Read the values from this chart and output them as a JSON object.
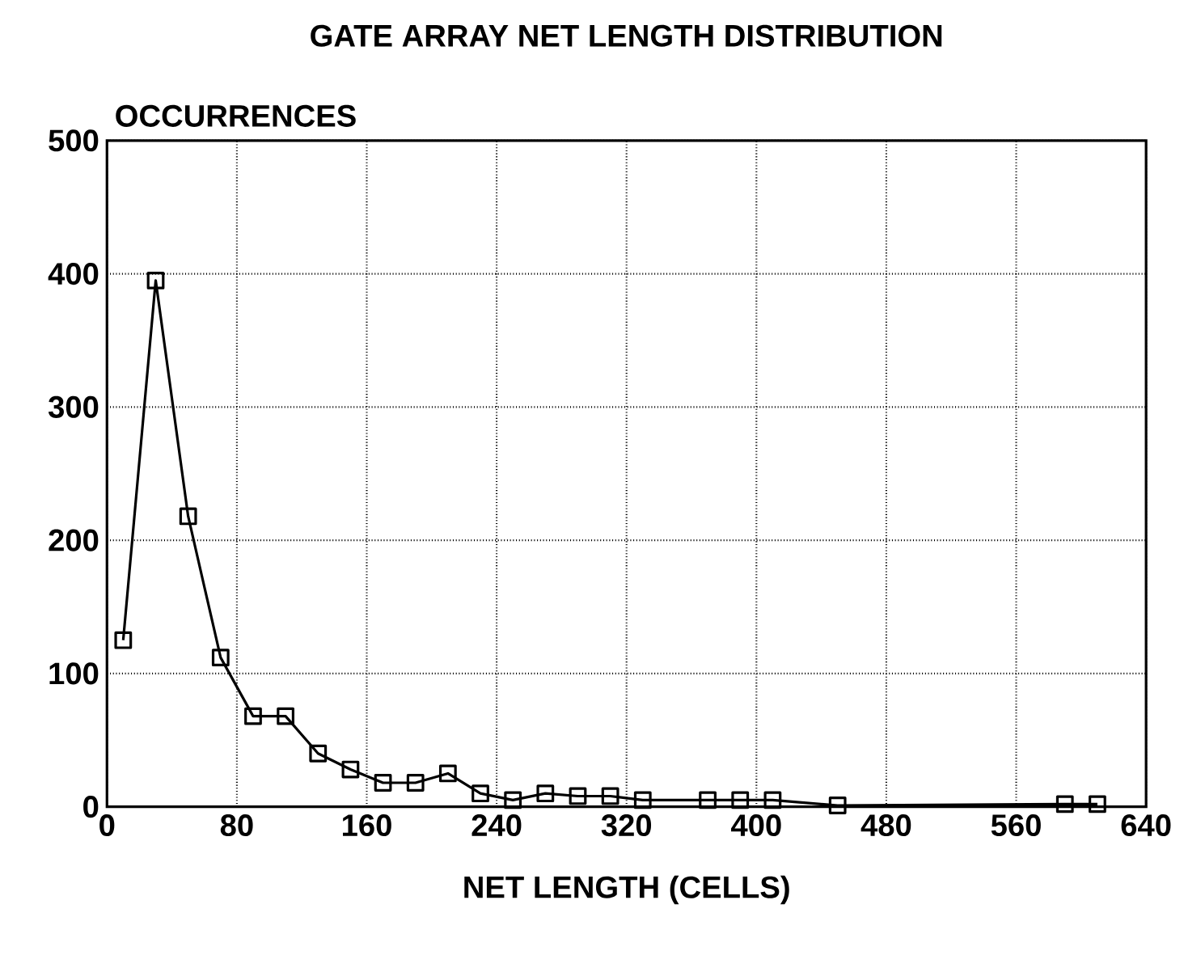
{
  "chart_data": {
    "type": "line",
    "title": "GATE ARRAY NET LENGTH DISTRIBUTION",
    "ylabel": "OCCURRENCES",
    "xlabel": "NET LENGTH (CELLS)",
    "x": [
      10,
      30,
      50,
      70,
      90,
      110,
      130,
      150,
      170,
      190,
      210,
      230,
      250,
      270,
      290,
      310,
      330,
      370,
      390,
      410,
      450,
      590,
      610
    ],
    "values": [
      125,
      395,
      218,
      112,
      68,
      68,
      40,
      28,
      18,
      18,
      25,
      10,
      5,
      10,
      8,
      8,
      5,
      5,
      5,
      5,
      1,
      2,
      2
    ],
    "color": "#000000",
    "marker": "square",
    "grid": true,
    "xlim": [
      0,
      640
    ],
    "xticks": [
      0,
      80,
      160,
      240,
      320,
      400,
      480,
      560,
      640
    ],
    "ylim": [
      0,
      500
    ],
    "yticks": [
      0,
      100,
      200,
      300,
      400,
      500
    ]
  }
}
